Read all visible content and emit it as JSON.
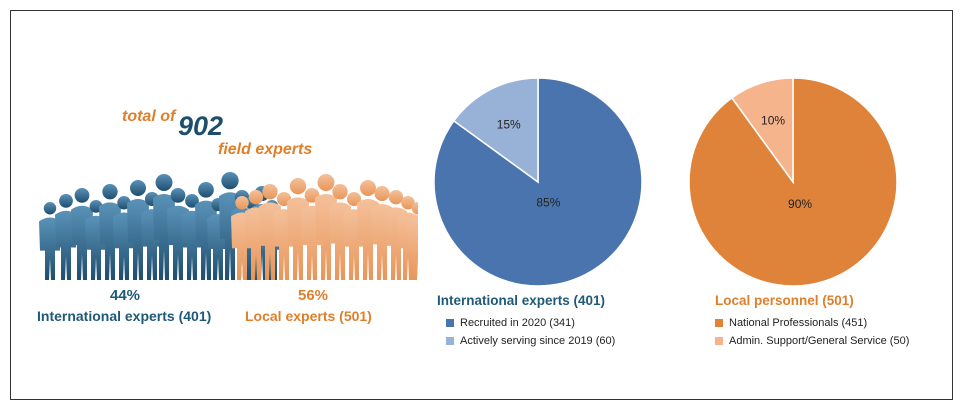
{
  "headline": {
    "prefix": "total of",
    "number": "902",
    "suffix": "field experts"
  },
  "crowd": {
    "left_pct": "44%",
    "left_label": "International experts (401)",
    "right_pct": "56%",
    "right_label": "Local experts (501)",
    "left_color": "#2d6a8f",
    "right_color": "#f0a56a"
  },
  "chart_data": [
    {
      "type": "pie",
      "title": "International experts (401)",
      "series": [
        {
          "name": "Recruited in 2020 (341)",
          "value": 85,
          "label": "85%",
          "color": "#4a74ad"
        },
        {
          "name": "Actively serving since 2019 (60)",
          "value": 15,
          "label": "15%",
          "color": "#97b2d6"
        }
      ],
      "legend_position": "bottom"
    },
    {
      "type": "pie",
      "title": "Local personnel (501)",
      "series": [
        {
          "name": "National Professionals (451)",
          "value": 90,
          "label": "90%",
          "color": "#e0833a"
        },
        {
          "name": "Admin. Support/General Service (50)",
          "value": 10,
          "label": "10%",
          "color": "#f5b48c"
        }
      ],
      "legend_position": "bottom"
    }
  ],
  "colors": {
    "teal_text": "#1e5a78",
    "orange_text": "#e07f2b"
  }
}
